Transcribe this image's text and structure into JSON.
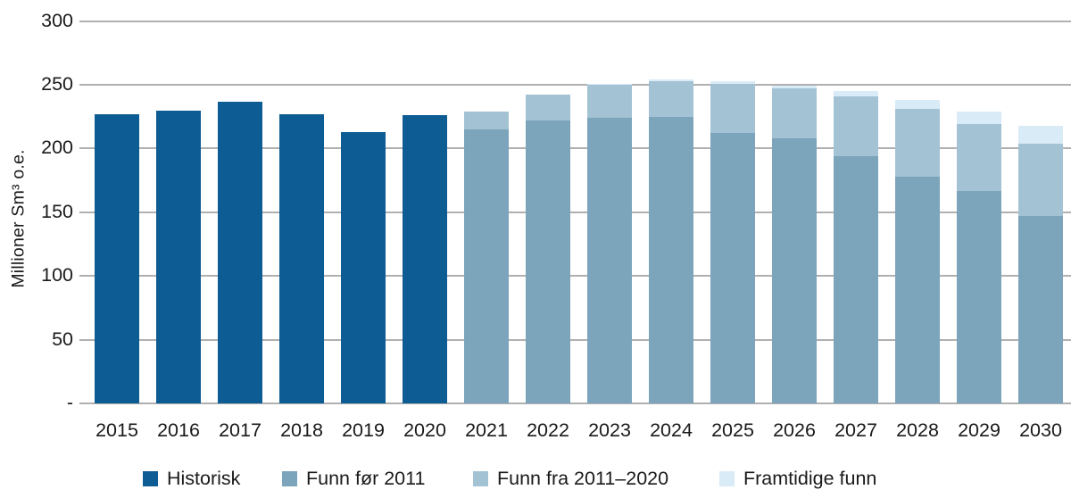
{
  "page": {
    "background": "#ffffff",
    "text_color": "#1a1a1a",
    "gridline_color": "#b0b0b0"
  },
  "chart_data": {
    "type": "bar",
    "subtype": "stacked",
    "title": "",
    "xlabel": "",
    "ylabel": "Millioner Sm³ o.e.",
    "ylim": [
      0,
      300
    ],
    "ytick_step": 50,
    "grid": true,
    "legend_position": "bottom",
    "y_ticks": [
      {
        "label": "300",
        "value": 300
      },
      {
        "label": "250",
        "value": 250
      },
      {
        "label": "200",
        "value": 200
      },
      {
        "label": "150",
        "value": 150
      },
      {
        "label": "100",
        "value": 100
      },
      {
        "label": "50",
        "value": 50
      },
      {
        "label": "-",
        "value": 0
      }
    ],
    "categories": [
      "2015",
      "2016",
      "2017",
      "2018",
      "2019",
      "2020",
      "2021",
      "2022",
      "2023",
      "2024",
      "2025",
      "2026",
      "2027",
      "2028",
      "2029",
      "2030"
    ],
    "series": [
      {
        "name": "Historisk",
        "color": "#0e5c94",
        "values": [
          227,
          230,
          237,
          227,
          213,
          226,
          0,
          0,
          0,
          0,
          0,
          0,
          0,
          0,
          0,
          0
        ]
      },
      {
        "name": "Funn før 2011",
        "color": "#7ca4bb",
        "values": [
          0,
          0,
          0,
          0,
          0,
          0,
          215,
          222,
          224,
          225,
          212,
          208,
          194,
          178,
          167,
          147
        ]
      },
      {
        "name": "Funn fra 2011–2020",
        "color": "#a3c2d3",
        "values": [
          0,
          0,
          0,
          0,
          0,
          0,
          14,
          20,
          26,
          28,
          39,
          39,
          47,
          53,
          52,
          57
        ]
      },
      {
        "name": "Framtidige funn",
        "color": "#d9ebf7",
        "values": [
          0,
          0,
          0,
          0,
          0,
          0,
          0,
          0,
          1,
          1,
          2,
          2,
          4,
          7,
          10,
          14
        ]
      }
    ],
    "totals": [
      227,
      230,
      237,
      227,
      213,
      226,
      229,
      242,
      251,
      254,
      253,
      249,
      245,
      238,
      229,
      218
    ]
  }
}
